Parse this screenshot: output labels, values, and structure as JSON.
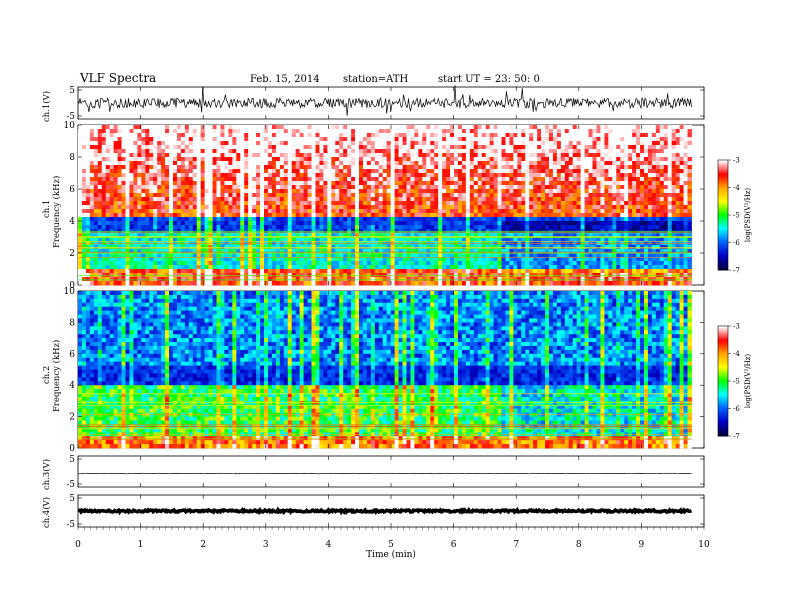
{
  "header": {
    "title": "VLF  Spectra",
    "date": "Feb. 15, 2014",
    "station": "station=ATH",
    "start_ut": "start  UT  =    23: 50: 0"
  },
  "panels": {
    "ch1_wave": {
      "label": "ch.1(V)",
      "ticks": [
        "5",
        "-5"
      ]
    },
    "ch1_spec": {
      "label": "ch.1\nFrequency  (kHz)",
      "label_a": "ch.1",
      "label_b": "Frequency  (kHz)",
      "ticks": [
        "10",
        "8",
        "6",
        "4",
        "2",
        "0"
      ]
    },
    "ch2_spec": {
      "label_a": "ch.2",
      "label_b": "Frequency  (kHz)",
      "ticks": [
        "10",
        "8",
        "6",
        "4",
        "2",
        "0"
      ]
    },
    "ch3_wave": {
      "label": "ch.3(V)",
      "ticks": [
        "5",
        "-5"
      ]
    },
    "ch4_wave": {
      "label": "ch.4(V)",
      "ticks": [
        "5",
        "-5"
      ]
    }
  },
  "colorbar": {
    "label": "log(PSD(V²/Hz)",
    "ticks": [
      "-3",
      "-4",
      "-5",
      "-6",
      "-7"
    ],
    "colors": [
      "#ffffff",
      "#ff0000",
      "#ffa500",
      "#ffff00",
      "#00ff00",
      "#00ffff",
      "#0064ff",
      "#0000c8",
      "#000040"
    ]
  },
  "chart_data": {
    "type": "heatmap",
    "title": "VLF  Spectra",
    "xlabel": "Time  (min)",
    "x_ticks": [
      "0",
      "1",
      "2",
      "3",
      "4",
      "5",
      "6",
      "7",
      "8",
      "9",
      "10"
    ],
    "xlim": [
      0,
      10
    ],
    "data_end_min": 9.8,
    "channels": [
      {
        "name": "ch.1",
        "kind": "waveform",
        "ylabel": "ch.1(V)",
        "ylim": [
          -5,
          5
        ]
      },
      {
        "name": "ch.1",
        "kind": "spectrogram",
        "ylabel": "Frequency  (kHz)",
        "ylim": [
          0,
          10
        ],
        "zlim": [
          -7,
          -3
        ],
        "zlabel": "log(PSD(V²/Hz)"
      },
      {
        "name": "ch.2",
        "kind": "spectrogram",
        "ylabel": "Frequency  (kHz)",
        "ylim": [
          0,
          10
        ],
        "zlim": [
          -7,
          -3
        ],
        "zlabel": "log(PSD(V²/Hz)"
      },
      {
        "name": "ch.3",
        "kind": "waveform",
        "ylabel": "ch.3(V)",
        "ylim": [
          -5,
          5
        ]
      },
      {
        "name": "ch.4",
        "kind": "waveform",
        "ylabel": "ch.4(V)",
        "ylim": [
          -5,
          5
        ]
      }
    ],
    "transition_min": 6.75
  }
}
